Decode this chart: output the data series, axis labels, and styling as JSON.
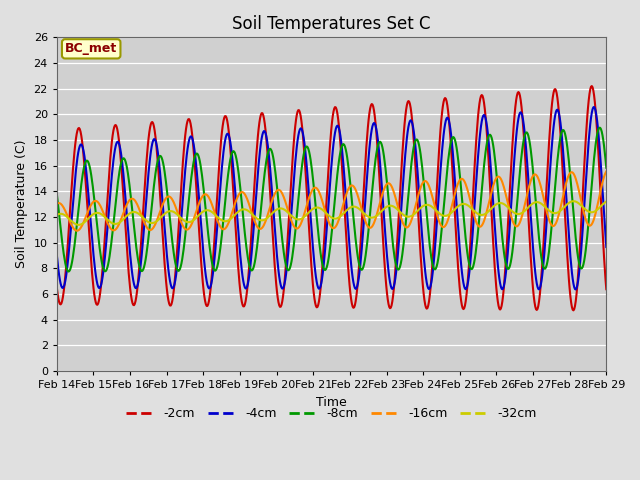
{
  "title": "Soil Temperatures Set C",
  "xlabel": "Time",
  "ylabel": "Soil Temperature (C)",
  "ylim": [
    0,
    26
  ],
  "yticks": [
    0,
    2,
    4,
    6,
    8,
    10,
    12,
    14,
    16,
    18,
    20,
    22,
    24,
    26
  ],
  "fig_bg": "#e0e0e0",
  "plot_bg": "#d0d0d0",
  "annotation_text": "BC_met",
  "annotation_bg": "#ffffcc",
  "annotation_border": "#999900",
  "annotation_text_color": "#8b0000",
  "series_colors": [
    "#cc0000",
    "#0000cc",
    "#009900",
    "#ff8800",
    "#cccc00"
  ],
  "series_labels": [
    "-2cm",
    "-4cm",
    "-8cm",
    "-16cm",
    "-32cm"
  ],
  "date_start": 14,
  "date_end": 29,
  "xtick_dates": [
    14,
    15,
    16,
    17,
    18,
    19,
    20,
    21,
    22,
    23,
    24,
    25,
    26,
    27,
    28,
    29
  ],
  "xtick_labels": [
    "Feb 14",
    "Feb 15",
    "Feb 16",
    "Feb 17",
    "Feb 18",
    "Feb 19",
    "Feb 20",
    "Feb 21",
    "Feb 22",
    "Feb 23",
    "Feb 24",
    "Feb 25",
    "Feb 26",
    "Feb 27",
    "Feb 28",
    "Feb 29"
  ]
}
